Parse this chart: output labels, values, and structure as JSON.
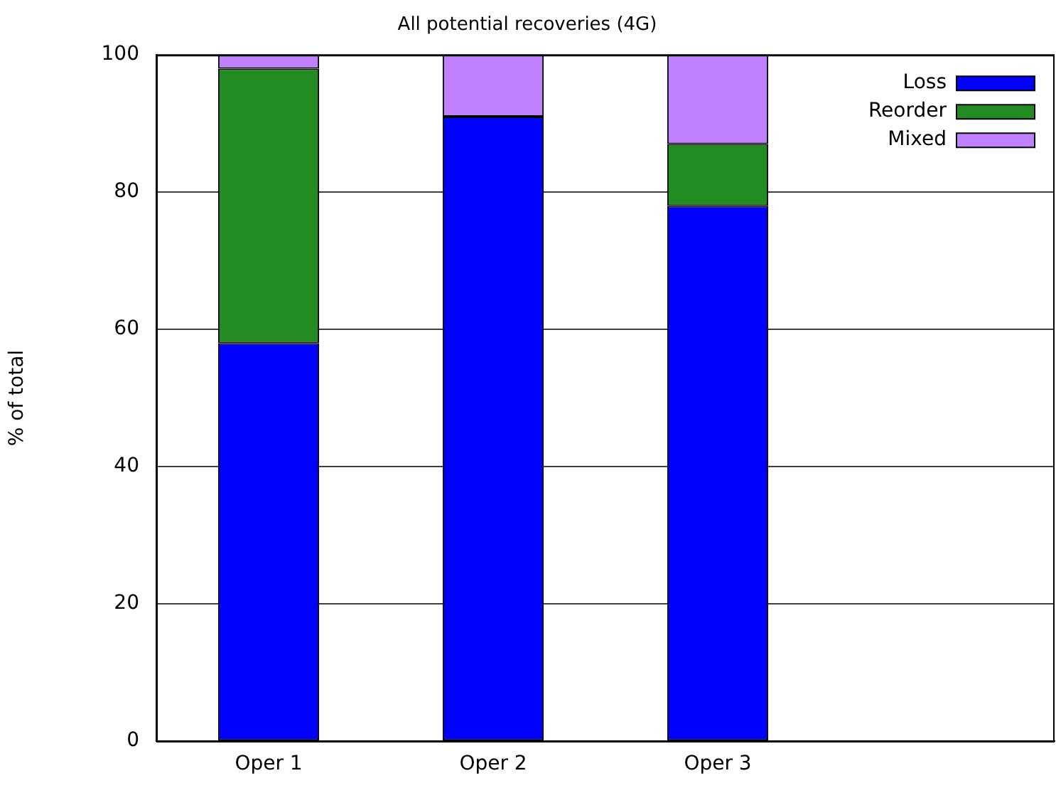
{
  "chart_data": {
    "type": "bar",
    "title": "All potential recoveries (4G)",
    "ylabel": "% of total",
    "categories": [
      "Oper 1",
      "Oper 2",
      "Oper 3",
      null
    ],
    "stacked": true,
    "series": [
      {
        "name": "Loss",
        "color": "#0000ff",
        "values": [
          58,
          91,
          78,
          null
        ]
      },
      {
        "name": "Reorder",
        "color": "#228b22",
        "values": [
          40,
          0,
          9,
          null
        ]
      },
      {
        "name": "Mixed",
        "color": "#c080ff",
        "values": [
          2,
          9,
          13,
          null
        ]
      }
    ],
    "ylim": [
      0,
      100
    ],
    "yticks": [
      0,
      20,
      40,
      60,
      80,
      100
    ],
    "grid": "y",
    "legend": "top right"
  }
}
